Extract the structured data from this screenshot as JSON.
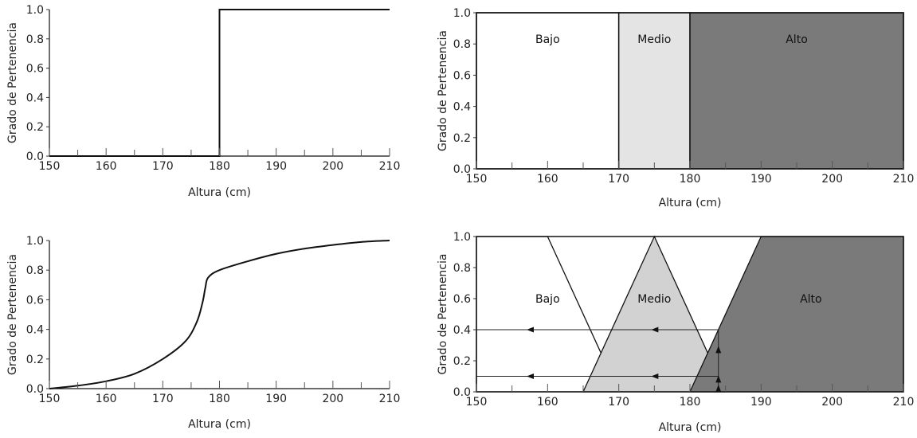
{
  "chart_data": [
    {
      "type": "line",
      "xlabel": "Altura (cm)",
      "ylabel": "Grado de Pertenencia",
      "xlim": [
        150,
        210
      ],
      "ylim": [
        0,
        1
      ],
      "xticks": [
        "150",
        "160",
        "170",
        "180",
        "190",
        "200",
        "210"
      ],
      "yticks": [
        "0.0",
        "0.2",
        "0.4",
        "0.6",
        "0.8",
        "1.0"
      ],
      "series": [
        {
          "x": [
            150,
            180,
            180,
            210
          ],
          "y": [
            0,
            0,
            1,
            1
          ]
        }
      ],
      "grid": false
    },
    {
      "type": "area",
      "xlabel": "Altura (cm)",
      "ylabel": "Grado de Pertenencia",
      "xlim": [
        150,
        210
      ],
      "ylim": [
        0,
        1
      ],
      "xticks": [
        "150",
        "160",
        "170",
        "180",
        "190",
        "200",
        "210"
      ],
      "yticks": [
        "0.0",
        "0.2",
        "0.4",
        "0.6",
        "0.8",
        "1.0"
      ],
      "regions": [
        {
          "name": "Bajo",
          "x": [
            150,
            170
          ],
          "color": "#ffffff"
        },
        {
          "name": "Medio",
          "x": [
            170,
            180
          ],
          "color": "#e4e4e4"
        },
        {
          "name": "Alto",
          "x": [
            180,
            210
          ],
          "color": "#7a7a7a"
        }
      ],
      "grid": false
    },
    {
      "type": "line",
      "xlabel": "Altura (cm)",
      "ylabel": "Grado de Pertenencia",
      "xlim": [
        150,
        210
      ],
      "ylim": [
        0,
        1
      ],
      "xticks": [
        "150",
        "160",
        "170",
        "180",
        "190",
        "200",
        "210"
      ],
      "yticks": [
        "0.0",
        "0.2",
        "0.4",
        "0.6",
        "0.8",
        "1.0"
      ],
      "series": [
        {
          "x": [
            150,
            155,
            160,
            165,
            170,
            174,
            176,
            177,
            177.5,
            178,
            180,
            185,
            190,
            195,
            200,
            205,
            210
          ],
          "y": [
            0,
            0.02,
            0.05,
            0.1,
            0.2,
            0.32,
            0.45,
            0.58,
            0.68,
            0.75,
            0.8,
            0.86,
            0.91,
            0.945,
            0.97,
            0.99,
            1.0
          ]
        }
      ],
      "grid": false
    },
    {
      "type": "area",
      "xlabel": "Altura (cm)",
      "ylabel": "Grado de Pertenencia",
      "xlim": [
        150,
        210
      ],
      "ylim": [
        0,
        1
      ],
      "xticks": [
        "150",
        "160",
        "170",
        "180",
        "190",
        "200",
        "210"
      ],
      "yticks": [
        "0.0",
        "0.2",
        "0.4",
        "0.6",
        "0.8",
        "1.0"
      ],
      "series": [
        {
          "name": "Bajo",
          "x": [
            150,
            150,
            160,
            170
          ],
          "y": [
            0,
            1,
            1,
            0
          ],
          "color": "#ffffff"
        },
        {
          "name": "Medio",
          "x": [
            165,
            175,
            185
          ],
          "y": [
            0,
            1,
            0
          ],
          "color": "#d2d2d2"
        },
        {
          "name": "Alto",
          "x": [
            180,
            190,
            210,
            210
          ],
          "y": [
            0,
            1,
            1,
            0
          ],
          "color": "#7a7a7a"
        }
      ],
      "annotations": [
        {
          "type": "horizontal-arrow",
          "y": 0.4,
          "x_from": 184,
          "x_to": 150
        },
        {
          "type": "horizontal-arrow",
          "y": 0.1,
          "x_from": 184,
          "x_to": 150
        },
        {
          "type": "vertical-arrow",
          "x": 184,
          "y_from": 0,
          "y_to": 0.4
        }
      ],
      "grid": false
    }
  ]
}
